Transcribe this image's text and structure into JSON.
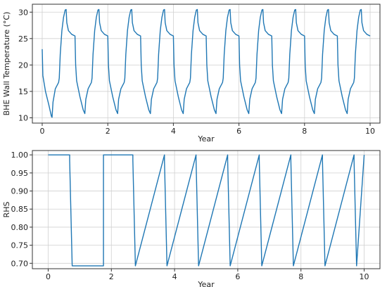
{
  "chart_data": [
    {
      "type": "line",
      "xlabel": "Year",
      "ylabel": "BHE Wall Temperature (°C)",
      "xlim": [
        -0.3,
        10.3
      ],
      "ylim": [
        9,
        31.5
      ],
      "xticks": [
        0,
        2,
        4,
        6,
        8,
        10
      ],
      "yticks": [
        10,
        15,
        20,
        25,
        30
      ],
      "xtick_labels": [
        "0",
        "2",
        "4",
        "6",
        "8",
        "10"
      ],
      "ytick_labels": [
        "10",
        "15",
        "20",
        "25",
        "30"
      ],
      "grid": true,
      "series": [
        {
          "color": "#1f77b4",
          "x": [
            0,
            0.02,
            0.1,
            0.2,
            0.28,
            0.3,
            0.33,
            0.4,
            0.5,
            0.52,
            0.55,
            0.6,
            0.65,
            0.7,
            0.73,
            0.75,
            0.8,
            0.9,
            1.0,
            1.02,
            1.05,
            1.15,
            1.25,
            1.3,
            1.33,
            1.4,
            1.5,
            1.52,
            1.55,
            1.6,
            1.65,
            1.7,
            1.73,
            1.75,
            1.8,
            1.9,
            2.0,
            2.02,
            2.05,
            2.15,
            2.25,
            2.3,
            2.33,
            2.4,
            2.5,
            2.52,
            2.55,
            2.6,
            2.65,
            2.7,
            2.73,
            2.75,
            2.8,
            2.9,
            3.0,
            3.02,
            3.05,
            3.15,
            3.25,
            3.3,
            3.33,
            3.4,
            3.5,
            3.52,
            3.55,
            3.6,
            3.65,
            3.7,
            3.73,
            3.75,
            3.8,
            3.9,
            4.0,
            4.02,
            4.05,
            4.15,
            4.25,
            4.3,
            4.33,
            4.4,
            4.5,
            4.52,
            4.55,
            4.6,
            4.65,
            4.7,
            4.73,
            4.75,
            4.8,
            4.9,
            5.0,
            5.02,
            5.05,
            5.15,
            5.25,
            5.3,
            5.33,
            5.4,
            5.5,
            5.52,
            5.55,
            5.6,
            5.65,
            5.7,
            5.73,
            5.75,
            5.8,
            5.9,
            6.0,
            6.02,
            6.05,
            6.15,
            6.25,
            6.3,
            6.33,
            6.4,
            6.5,
            6.52,
            6.55,
            6.6,
            6.65,
            6.7,
            6.73,
            6.75,
            6.8,
            6.9,
            7.0,
            7.02,
            7.05,
            7.15,
            7.25,
            7.3,
            7.33,
            7.4,
            7.5,
            7.52,
            7.55,
            7.6,
            7.65,
            7.7,
            7.73,
            7.75,
            7.8,
            7.9,
            8.0,
            8.02,
            8.05,
            8.15,
            8.25,
            8.3,
            8.33,
            8.4,
            8.5,
            8.52,
            8.55,
            8.6,
            8.65,
            8.7,
            8.73,
            8.75,
            8.8,
            8.9,
            9.0,
            9.02,
            9.05,
            9.15,
            9.25,
            9.3,
            9.33,
            9.4,
            9.5,
            9.52,
            9.55,
            9.6,
            9.65,
            9.7,
            9.73,
            9.75,
            9.8,
            9.9,
            10.0
          ],
          "y": [
            23.0,
            18.0,
            15.0,
            12.5,
            10.3,
            10.1,
            13.0,
            15.5,
            16.7,
            17.5,
            22.0,
            26.5,
            29.0,
            30.4,
            30.5,
            28.0,
            26.5,
            25.8,
            25.5,
            20.0,
            17.0,
            14.0,
            11.5,
            10.8,
            13.5,
            15.5,
            16.7,
            17.5,
            22.0,
            26.5,
            29.0,
            30.4,
            30.5,
            28.0,
            26.5,
            25.8,
            25.5,
            20.0,
            17.0,
            14.0,
            11.5,
            10.8,
            13.5,
            15.5,
            16.7,
            17.5,
            22.0,
            26.5,
            29.0,
            30.4,
            30.5,
            28.0,
            26.5,
            25.8,
            25.5,
            20.0,
            17.0,
            14.0,
            11.5,
            10.8,
            13.5,
            15.5,
            16.7,
            17.5,
            22.0,
            26.5,
            29.0,
            30.4,
            30.5,
            28.0,
            26.5,
            25.8,
            25.5,
            20.0,
            17.0,
            14.0,
            11.5,
            10.8,
            13.5,
            15.5,
            16.7,
            17.5,
            22.0,
            26.5,
            29.0,
            30.4,
            30.5,
            28.0,
            26.5,
            25.8,
            25.5,
            20.0,
            17.0,
            14.0,
            11.5,
            10.8,
            13.5,
            15.5,
            16.7,
            17.5,
            22.0,
            26.5,
            29.0,
            30.4,
            30.5,
            28.0,
            26.5,
            25.8,
            25.5,
            20.0,
            17.0,
            14.0,
            11.5,
            10.8,
            13.5,
            15.5,
            16.7,
            17.5,
            22.0,
            26.5,
            29.0,
            30.4,
            30.5,
            28.0,
            26.5,
            25.8,
            25.5,
            20.0,
            17.0,
            14.0,
            11.5,
            10.8,
            13.5,
            15.5,
            16.7,
            17.5,
            22.0,
            26.5,
            29.0,
            30.4,
            30.5,
            28.0,
            26.5,
            25.8,
            25.5,
            20.0,
            17.0,
            14.0,
            11.5,
            10.8,
            13.5,
            15.5,
            16.7,
            17.5,
            22.0,
            26.5,
            29.0,
            30.4,
            30.5,
            28.0,
            26.5,
            25.8,
            25.5,
            20.0,
            17.0,
            14.0,
            11.5,
            10.8,
            13.5,
            15.5,
            16.7,
            17.5,
            22.0,
            26.5,
            29.0,
            30.4,
            30.5,
            28.0,
            26.5,
            25.8,
            25.5
          ]
        }
      ]
    },
    {
      "type": "line",
      "xlabel": "Year",
      "ylabel": "RHS",
      "xlim": [
        -0.5,
        10.5
      ],
      "ylim": [
        0.685,
        1.012
      ],
      "xticks": [
        0,
        2,
        4,
        6,
        8,
        10
      ],
      "yticks": [
        0.7,
        0.75,
        0.8,
        0.85,
        0.9,
        0.95,
        1.0
      ],
      "xtick_labels": [
        "0",
        "2",
        "4",
        "6",
        "8",
        "10"
      ],
      "ytick_labels": [
        "0.70",
        "0.75",
        "0.80",
        "0.85",
        "0.90",
        "0.95",
        "1.00"
      ],
      "grid": true,
      "series": [
        {
          "color": "#1f77b4",
          "x": [
            0,
            0.68,
            0.68,
            0.76,
            1.75,
            1.75,
            1.77,
            2.68,
            2.68,
            2.76,
            3.68,
            3.68,
            3.76,
            4.68,
            4.68,
            4.76,
            5.68,
            5.68,
            5.76,
            6.68,
            6.68,
            6.76,
            7.68,
            7.68,
            7.76,
            8.68,
            8.68,
            8.76,
            9.68,
            9.68,
            9.76,
            10.0
          ],
          "y": [
            1.0,
            1.0,
            0.985,
            0.693,
            0.693,
            1.0,
            1.0,
            1.0,
            0.985,
            0.693,
            1.0,
            0.985,
            0.693,
            1.0,
            0.985,
            0.693,
            1.0,
            0.985,
            0.693,
            1.0,
            0.985,
            0.693,
            1.0,
            0.985,
            0.693,
            1.0,
            0.985,
            0.693,
            1.0,
            0.985,
            0.693,
            1.0
          ]
        }
      ]
    }
  ]
}
